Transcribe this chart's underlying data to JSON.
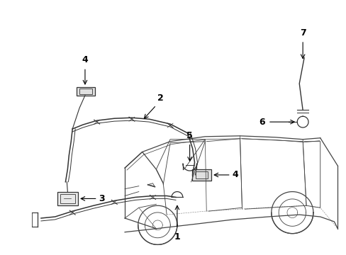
{
  "bg_color": "#ffffff",
  "line_color": "#333333",
  "van_color": "#444444",
  "text_color": "#000000",
  "fig_width": 4.89,
  "fig_height": 3.6,
  "dpi": 100
}
